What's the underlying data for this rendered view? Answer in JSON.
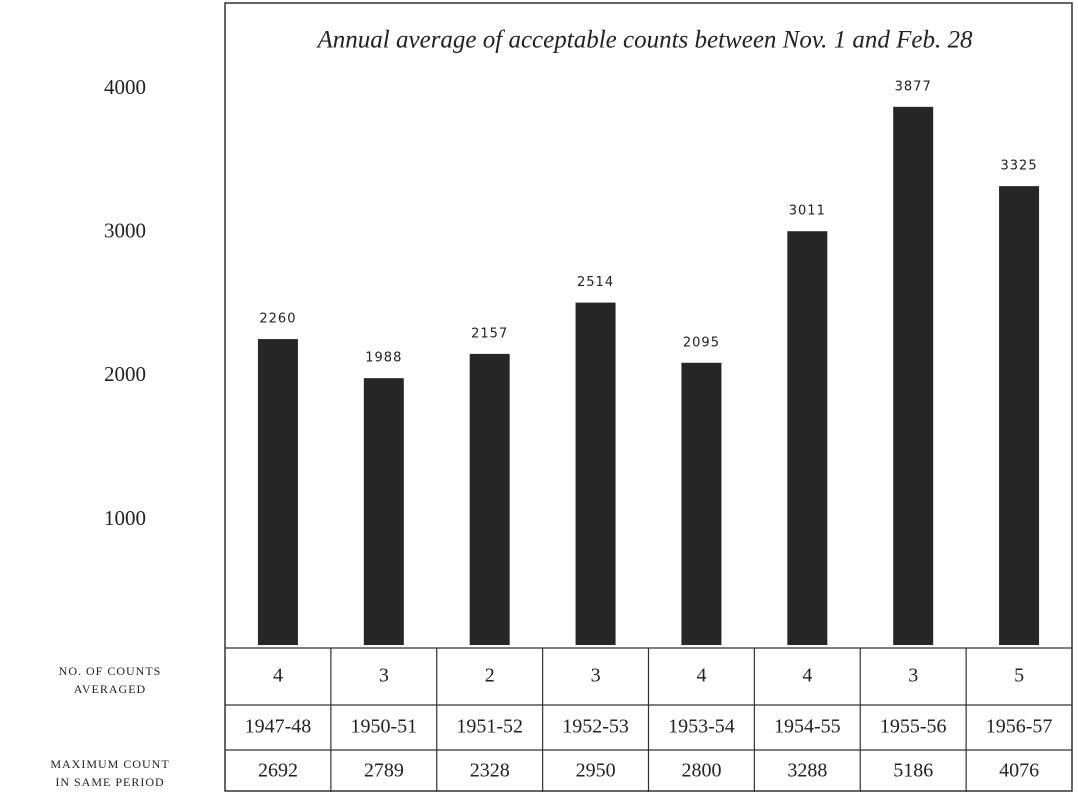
{
  "chart_data": {
    "type": "bar",
    "title": "Annual average of acceptable counts between Nov. 1 and Feb. 28",
    "categories": [
      "1947-48",
      "1950-51",
      "1951-52",
      "1952-53",
      "1953-54",
      "1954-55",
      "1955-56",
      "1956-57"
    ],
    "values": [
      2260,
      1988,
      2157,
      2514,
      2095,
      3011,
      3877,
      3325
    ],
    "color": "#262626",
    "ylim": [
      130,
      4600
    ],
    "yticks": [
      1000,
      2000,
      3000,
      4000
    ],
    "grid": false,
    "counts_averaged": {
      "label": [
        "NO. OF COUNTS",
        "AVERAGED"
      ],
      "values": [
        4,
        3,
        2,
        3,
        4,
        4,
        3,
        5
      ]
    },
    "maximum_count": {
      "label": [
        "MAXIMUM COUNT",
        "IN SAME PERIOD"
      ],
      "values": [
        2692,
        2789,
        2328,
        2950,
        2800,
        3288,
        5186,
        4076
      ]
    }
  }
}
